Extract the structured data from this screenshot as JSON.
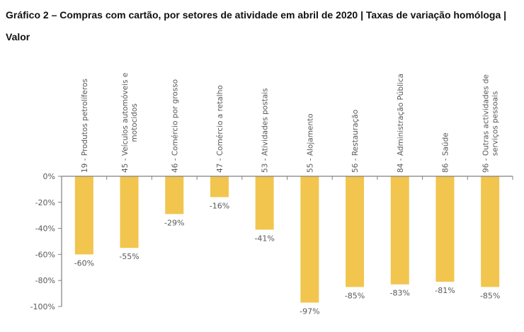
{
  "chart_data": {
    "type": "bar",
    "title": "Gráfico 2 – Compras com cartão, por setores de atividade em abril de 2020 | Taxas de variação homóloga | Valor",
    "xlabel": "",
    "ylabel": "",
    "ylim": [
      -100,
      0
    ],
    "yticks": [
      0,
      -20,
      -40,
      -60,
      -80,
      -100
    ],
    "ytick_labels": [
      "0%",
      "-20%",
      "-40%",
      "-60%",
      "-80%",
      "-100%"
    ],
    "categories": [
      [
        "19 - Produtos petrolíferos"
      ],
      [
        "45 - Veículos automóveis e",
        "motocidos"
      ],
      [
        "46 - Comércio por grosso"
      ],
      [
        "47 - Comércio a retalho"
      ],
      [
        "53 - Atividades postais"
      ],
      [
        "55 - Alojamento"
      ],
      [
        "56 - Restauração"
      ],
      [
        "84 - Administração Pública"
      ],
      [
        "86 - Saúde"
      ],
      [
        "96 - Outras actividades de",
        "serviços pessoais"
      ]
    ],
    "values": [
      -60,
      -55,
      -29,
      -16,
      -41,
      -97,
      -85,
      -83,
      -81,
      -85
    ],
    "data_labels": [
      "-60%",
      "-55%",
      "-29%",
      "-16%",
      "-41%",
      "-97%",
      "-85%",
      "-83%",
      "-81%",
      "-85%"
    ],
    "grid": false,
    "legend": "none",
    "colors": {
      "bar": "#F1C54E",
      "axis": "#808080",
      "text": "#595959"
    }
  }
}
